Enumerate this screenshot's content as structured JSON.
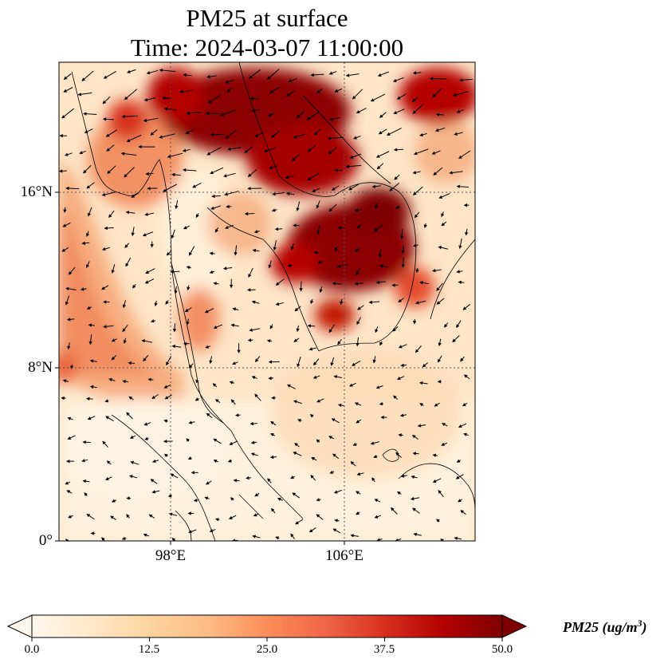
{
  "title_line1": "PM25 at surface",
  "title_line2": "Time: 2024-03-07 11:00:00",
  "latitude_labels": [
    "16°N",
    "8°N",
    "0°"
  ],
  "longitude_labels": [
    "98°E",
    "106°E"
  ],
  "colorbar": {
    "label_text": "PM25 (ug/m",
    "label_superscript": "3",
    "label_close": ")",
    "ticks": [
      "0.0",
      "12.5",
      "25.0",
      "37.5",
      "50.0"
    ],
    "min": 0,
    "max": 50,
    "colormap": "OrRd",
    "colors": [
      "#fff7ec",
      "#fee8c8",
      "#fdd49e",
      "#fdbb84",
      "#fc8d59",
      "#ef6548",
      "#d7301f",
      "#b30000",
      "#7f0000"
    ],
    "extend": "both"
  },
  "map_extent": {
    "lon_min": 93,
    "lon_max": 112,
    "lat_min": 0,
    "lat_max": 22
  },
  "gridlines": {
    "lons": [
      98,
      106
    ],
    "lats": [
      8,
      16
    ],
    "style": "dotted"
  },
  "chart_data": {
    "type": "heatmap",
    "variable": "PM25",
    "high_concentration_regions": [
      {
        "lon": 102.5,
        "lat": 19.5,
        "value": 50
      },
      {
        "lon": 105.8,
        "lat": 13.8,
        "value": 50
      },
      {
        "lon": 104.0,
        "lat": 18.0,
        "value": 45
      },
      {
        "lon": 108.5,
        "lat": 19.5,
        "value": 40
      },
      {
        "lon": 95.0,
        "lat": 12.0,
        "value": 28
      },
      {
        "lon": 93.8,
        "lat": 17.0,
        "value": 25
      },
      {
        "lon": 104.5,
        "lat": 10.8,
        "value": 45
      },
      {
        "lon": 99.5,
        "lat": 12.0,
        "value": 22
      }
    ],
    "wind_vectors": "shown"
  }
}
